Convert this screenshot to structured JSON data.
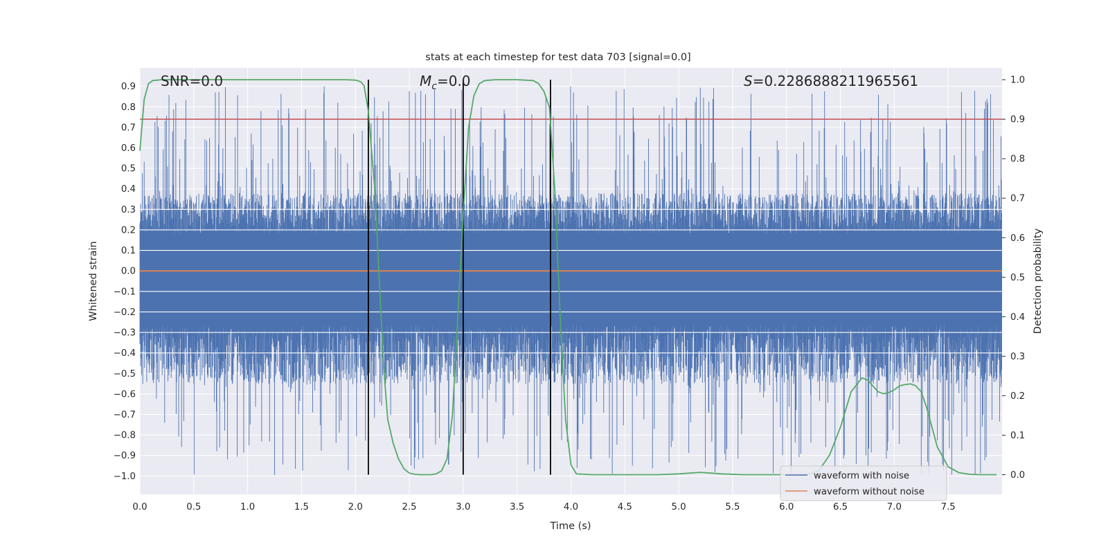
{
  "chart_data": {
    "type": "line",
    "title": "stats at each timestep for test data 703 [signal=0.0]",
    "xlabel": "Time (s)",
    "ylabel": "Whitened strain",
    "y2label": "Detection probability",
    "xlim": [
      0.0,
      8.0
    ],
    "ylim": [
      -1.09,
      0.99
    ],
    "y2lim": [
      -0.05,
      1.03
    ],
    "xticks": [
      "0.0",
      "0.5",
      "1.0",
      "1.5",
      "2.0",
      "2.5",
      "3.0",
      "3.5",
      "4.0",
      "4.5",
      "5.0",
      "5.5",
      "6.0",
      "6.5",
      "7.0",
      "7.5"
    ],
    "yticks": [
      "0.9",
      "0.8",
      "0.7",
      "0.6",
      "0.5",
      "0.4",
      "0.3",
      "0.2",
      "0.1",
      "0.0",
      "-0.1",
      "-0.2",
      "-0.3",
      "-0.4",
      "-0.5",
      "-0.6",
      "-0.7",
      "-0.8",
      "-0.9",
      "-1.0"
    ],
    "y2ticks": [
      "1.0",
      "0.9",
      "0.8",
      "0.7",
      "0.6",
      "0.5",
      "0.4",
      "0.3",
      "0.2",
      "0.1",
      "0.0"
    ],
    "annotations": {
      "snr": "SNR=0.0",
      "mc_symbol": "M",
      "mc_sub": "c",
      "mc_value": "=0.0",
      "s_symbol": "S",
      "s_value": "=0.2286888211965561"
    },
    "threshold": 0.9,
    "event_lines_x": [
      2.12,
      3.0,
      3.81
    ],
    "noise_profile": {
      "upper_typical": 0.33,
      "lower_typical": -0.48,
      "upper_peak": 0.9,
      "lower_peak": -1.0
    },
    "series": [
      {
        "name": "waveform with noise",
        "color": "#4c72b0",
        "axis": "left"
      },
      {
        "name": "waveform without noise",
        "color": "#dd8452",
        "axis": "left",
        "value": 0.0
      },
      {
        "name": "Detection probability",
        "color": "#55a868",
        "axis": "right",
        "x": [
          0.0,
          0.04,
          0.08,
          0.12,
          0.2,
          0.4,
          0.8,
          1.2,
          1.6,
          1.9,
          2.0,
          2.05,
          2.08,
          2.12,
          2.18,
          2.22,
          2.26,
          2.3,
          2.35,
          2.4,
          2.45,
          2.5,
          2.55,
          2.6,
          2.7,
          2.75,
          2.8,
          2.85,
          2.9,
          2.95,
          3.0,
          3.05,
          3.1,
          3.15,
          3.2,
          3.3,
          3.5,
          3.65,
          3.7,
          3.75,
          3.8,
          3.85,
          3.9,
          3.95,
          4.0,
          4.05,
          4.2,
          4.5,
          4.8,
          5.0,
          5.2,
          5.4,
          5.6,
          5.8,
          6.0,
          6.2,
          6.3,
          6.4,
          6.5,
          6.6,
          6.7,
          6.75,
          6.8,
          6.85,
          6.9,
          6.95,
          7.0,
          7.05,
          7.1,
          7.15,
          7.2,
          7.25,
          7.3,
          7.35,
          7.4,
          7.5,
          7.6,
          7.7,
          7.8,
          7.9,
          7.95
        ],
        "values": [
          0.82,
          0.95,
          0.99,
          0.998,
          1.0,
          1.0,
          1.0,
          1.0,
          1.0,
          1.0,
          0.999,
          0.995,
          0.985,
          0.92,
          0.72,
          0.5,
          0.28,
          0.14,
          0.08,
          0.04,
          0.015,
          0.004,
          0.001,
          0.0,
          0.0,
          0.002,
          0.01,
          0.04,
          0.15,
          0.4,
          0.66,
          0.88,
          0.96,
          0.99,
          0.998,
          1.0,
          1.0,
          0.998,
          0.99,
          0.97,
          0.93,
          0.72,
          0.4,
          0.14,
          0.025,
          0.002,
          0.0,
          0.0,
          0.0,
          0.002,
          0.006,
          0.002,
          0.0,
          0.0,
          0.0,
          0.001,
          0.01,
          0.05,
          0.12,
          0.21,
          0.245,
          0.24,
          0.225,
          0.21,
          0.205,
          0.208,
          0.215,
          0.225,
          0.228,
          0.23,
          0.225,
          0.21,
          0.17,
          0.12,
          0.07,
          0.02,
          0.005,
          0.001,
          0.0,
          0.0,
          0.0
        ]
      },
      {
        "name": "threshold",
        "color": "#c44e52",
        "axis": "right",
        "value": 0.9
      }
    ],
    "legend": {
      "position": "lower-right",
      "entries": [
        {
          "label": "waveform with noise",
          "color": "#4c72b0"
        },
        {
          "label": "waveform without noise",
          "color": "#dd8452"
        }
      ]
    },
    "grid": true,
    "style": {
      "background": "#eaeaf2",
      "grid_color": "#ffffff",
      "noise_color": "#4c72b0",
      "clean_color": "#dd8452",
      "prob_color": "#55a868",
      "threshold_color": "#c44e52",
      "event_line_color": "#000000"
    }
  }
}
